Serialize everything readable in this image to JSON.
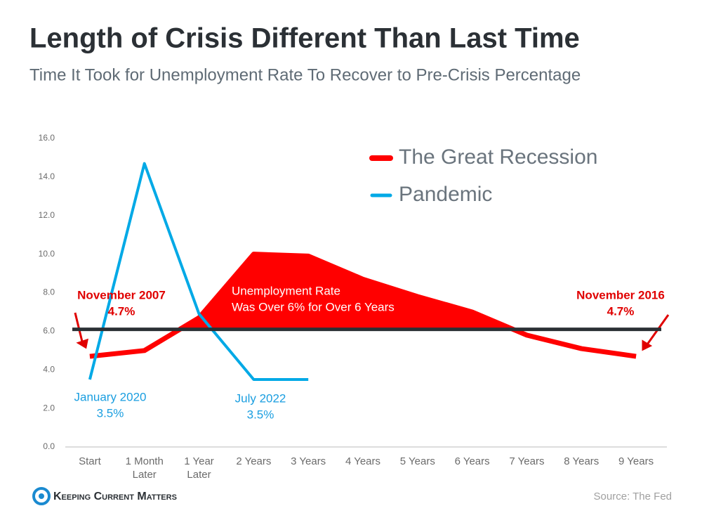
{
  "chart_data": {
    "type": "line",
    "title": "Length of Crisis Different Than Last Time",
    "subtitle": "Time It Took for Unemployment Rate To Recover to Pre-Crisis Percentage",
    "categories": [
      "Start",
      "1 Month Later",
      "1 Year Later",
      "2 Years",
      "3 Years",
      "4 Years",
      "5 Years",
      "6 Years",
      "7 Years",
      "8 Years",
      "9 Years"
    ],
    "series": [
      {
        "name": "The Great Recession",
        "color": "#ff0000",
        "values": [
          4.7,
          5.0,
          6.7,
          10.0,
          9.9,
          8.7,
          7.8,
          7.0,
          5.8,
          5.1,
          4.7
        ]
      },
      {
        "name": "Pandemic",
        "color": "#00a9e6",
        "values": [
          3.5,
          14.7,
          6.9,
          3.5,
          3.5,
          null,
          null,
          null,
          null,
          null,
          null
        ]
      }
    ],
    "reference_line": 6.1,
    "ylim": [
      0,
      16
    ],
    "yticks": [
      {
        "value": 0,
        "label": "0.0"
      },
      {
        "value": 2,
        "label": "2.0"
      },
      {
        "value": 4,
        "label": "4.0"
      },
      {
        "value": 6,
        "label": "6.0"
      },
      {
        "value": 8,
        "label": "8.0"
      },
      {
        "value": 10,
        "label": "10.0"
      },
      {
        "value": 12,
        "label": "12.0"
      },
      {
        "value": 14,
        "label": "14.0"
      },
      {
        "value": 16,
        "label": "16.0"
      }
    ],
    "grid": false,
    "annotations": [
      {
        "lines": [
          "November 2007",
          "4.7%"
        ]
      },
      {
        "lines": [
          "January 2020",
          "3.5%"
        ]
      },
      {
        "lines": [
          "July 2022",
          "3.5%"
        ]
      },
      {
        "lines": [
          "November 2016",
          "4.7%"
        ]
      },
      {
        "lines": [
          "Unemployment Rate",
          "Was Over 6% for Over 6 Years"
        ]
      }
    ],
    "logo": "Keeping Current Matters",
    "source": "Source: The Fed"
  }
}
